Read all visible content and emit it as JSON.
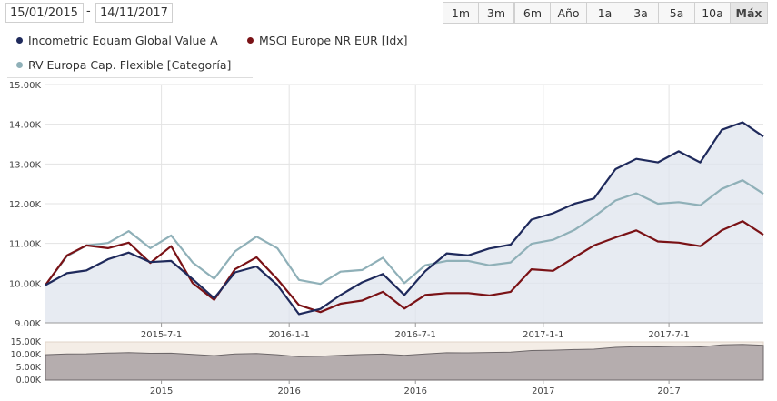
{
  "date_range": {
    "from": "15/01/2015",
    "separator": "-",
    "to": "14/11/2017"
  },
  "range_buttons": [
    "1m",
    "3m",
    "6m",
    "Año",
    "1a",
    "3a",
    "5a",
    "10a",
    "Máx"
  ],
  "active_range": "Máx",
  "colors": {
    "series1": "#1f2a5c",
    "series2": "#7a1216",
    "series3": "#8fb0b8",
    "plot_fill": "#dfe4ee",
    "navigator_fill": "#b5adae",
    "navigator_bg": "#f4ede6"
  },
  "chart_data": {
    "type": "line",
    "x_start": "2015-01-15",
    "x_end": "2017-11-14",
    "x": [
      "2015-01-15",
      "2015-02-15",
      "2015-03-15",
      "2015-04-15",
      "2015-05-15",
      "2015-06-15",
      "2015-07-15",
      "2015-08-15",
      "2015-09-15",
      "2015-10-15",
      "2015-11-15",
      "2015-12-15",
      "2016-01-15",
      "2016-02-15",
      "2016-03-15",
      "2016-04-15",
      "2016-05-15",
      "2016-06-15",
      "2016-07-15",
      "2016-08-15",
      "2016-09-15",
      "2016-10-15",
      "2016-11-15",
      "2016-12-15",
      "2017-01-15",
      "2017-02-15",
      "2017-03-15",
      "2017-04-15",
      "2017-05-15",
      "2017-06-15",
      "2017-07-15",
      "2017-08-15",
      "2017-09-15",
      "2017-10-15",
      "2017-11-14"
    ],
    "series": [
      {
        "name": "Incometric Equam Global Value A",
        "color": "#1f2a5c",
        "values": [
          9950,
          10250,
          10320,
          10600,
          10770,
          10530,
          10560,
          10100,
          9620,
          10270,
          10420,
          9950,
          9220,
          9350,
          9700,
          10020,
          10230,
          9700,
          10300,
          10750,
          10700,
          10870,
          10970,
          11600,
          11760,
          12000,
          12130,
          12870,
          13130,
          13040,
          13320,
          13040,
          13860,
          14050,
          13690
        ]
      },
      {
        "name": "MSCI Europe NR EUR [Idx]",
        "color": "#7a1216",
        "values": [
          9950,
          10700,
          10950,
          10880,
          11020,
          10510,
          10930,
          10000,
          9580,
          10350,
          10650,
          10100,
          9450,
          9270,
          9480,
          9560,
          9780,
          9360,
          9700,
          9750,
          9750,
          9690,
          9780,
          10350,
          10310,
          10650,
          10950,
          11150,
          11330,
          11050,
          11020,
          10930,
          11330,
          11560,
          11220
        ]
      },
      {
        "name": "RV Europa Cap. Flexible [Categoría]",
        "color": "#8fb0b8",
        "values": [
          9950,
          10680,
          10950,
          11010,
          11310,
          10880,
          11200,
          10520,
          10110,
          10800,
          11170,
          10880,
          10080,
          9980,
          10290,
          10330,
          10640,
          10000,
          10450,
          10560,
          10560,
          10450,
          10520,
          10990,
          11090,
          11340,
          11670,
          12080,
          12260,
          12000,
          12040,
          11960,
          12370,
          12590,
          12250
        ]
      }
    ],
    "xticks": [
      "2015-7-1",
      "2016-1-1",
      "2016-7-1",
      "2017-1-1",
      "2017-7-1"
    ],
    "yticks": [
      "9.00K",
      "10.00K",
      "11.00K",
      "12.00K",
      "13.00K",
      "14.00K",
      "15.00K"
    ],
    "ylim": [
      9000,
      15000
    ],
    "navigator": {
      "xticks": [
        "2015",
        "2016",
        "2016",
        "2017",
        "2017"
      ],
      "yticks": [
        "15.00K",
        "10.00K",
        "5.00K",
        "0.00K"
      ],
      "ylim": [
        0,
        15000
      ]
    }
  }
}
